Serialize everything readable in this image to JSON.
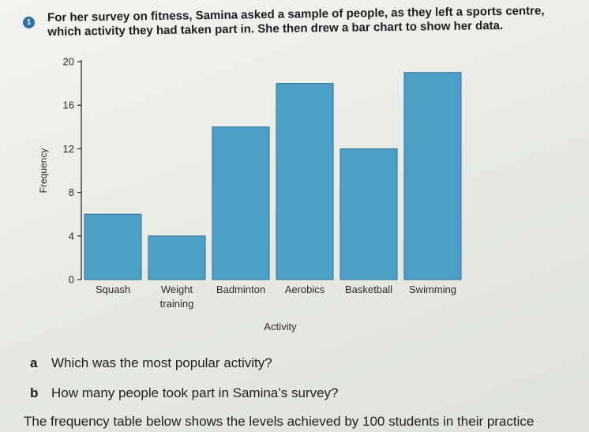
{
  "question": {
    "number": "1",
    "intro_line1": "For her survey on fitness, Samina asked a sample of people, as they left a sports centre,",
    "intro_line2": "which activity they had taken part in. She then drew a bar chart to show her data."
  },
  "chart_data": {
    "type": "bar",
    "categories": [
      "Squash",
      "Weight training",
      "Badminton",
      "Aerobics",
      "Basketball",
      "Swimming"
    ],
    "category_labels": [
      [
        "Squash"
      ],
      [
        "Weight",
        "training"
      ],
      [
        "Badminton"
      ],
      [
        "Aerobics"
      ],
      [
        "Basketball"
      ],
      [
        "Swimming"
      ]
    ],
    "values": [
      6,
      4,
      14,
      18,
      12,
      19
    ],
    "xlabel": "Activity",
    "ylabel": "Frequency",
    "ylim": [
      0,
      20
    ],
    "yticks": [
      0,
      4,
      8,
      12,
      16,
      20
    ],
    "bar_color": "#4d9fc6",
    "bar_edge_color": "#2b6f94",
    "grid": false
  },
  "questions": [
    {
      "letter": "a",
      "text": "Which was the most popular activity?"
    },
    {
      "letter": "b",
      "text": "How many people took part in Samina’s survey?"
    }
  ],
  "footer_text": "The frequency table below shows the levels achieved by 100 students in their practice"
}
